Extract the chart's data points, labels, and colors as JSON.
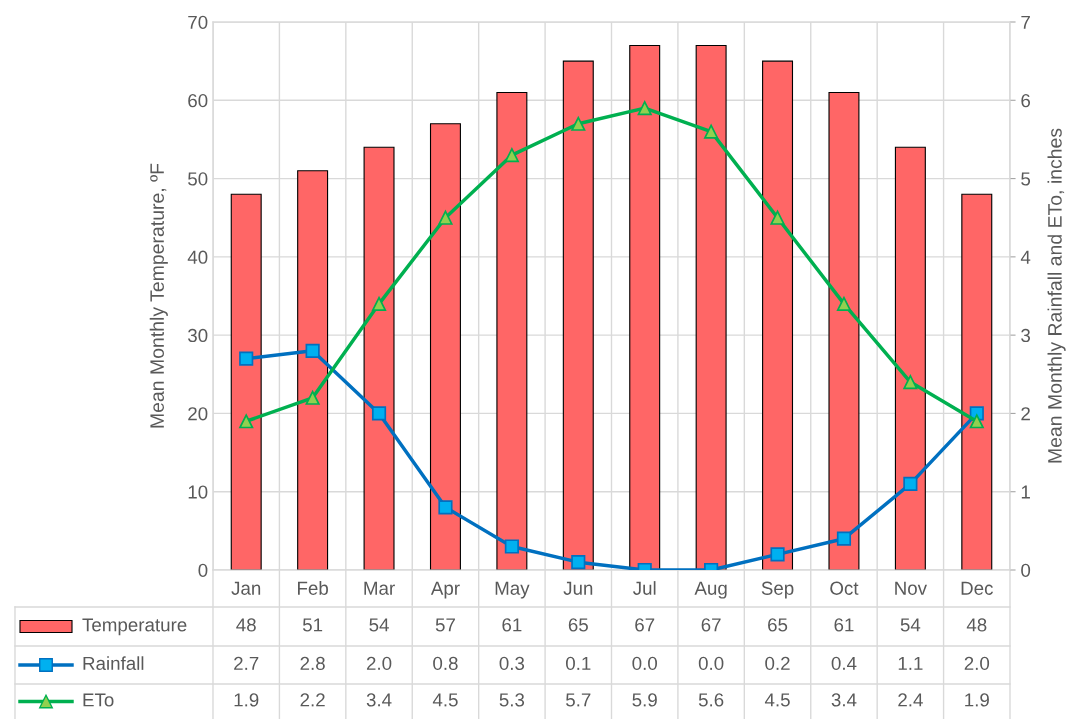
{
  "chart_data": {
    "type": "bar",
    "ylabel": "Mean Monthly Temperature, ºF",
    "y2label": "Mean Monthly Rainfall and ETo, inches",
    "categories": [
      "Jan",
      "Feb",
      "Mar",
      "Apr",
      "May",
      "Jun",
      "Jul",
      "Aug",
      "Sep",
      "Oct",
      "Nov",
      "Dec"
    ],
    "series": [
      {
        "name": "Temperature",
        "color": "#ff6666",
        "values": [
          48,
          51,
          54,
          57,
          61,
          65,
          67,
          67,
          65,
          61,
          54,
          48
        ],
        "value_labels": [
          "48",
          "51",
          "54",
          "57",
          "61",
          "65",
          "67",
          "67",
          "65",
          "61",
          "54",
          "48"
        ]
      },
      {
        "name": "Rainfall",
        "type": "line",
        "axis": "y2",
        "color": "#0070c0",
        "marker": "square",
        "values": [
          2.7,
          2.8,
          2.0,
          0.8,
          0.3,
          0.1,
          0.0,
          0.0,
          0.2,
          0.4,
          1.1,
          2.0
        ],
        "value_labels": [
          "2.7",
          "2.8",
          "2.0",
          "0.8",
          "0.3",
          "0.1",
          "0.0",
          "0.0",
          "0.2",
          "0.4",
          "1.1",
          "2.0"
        ]
      },
      {
        "name": "ETo",
        "type": "line",
        "axis": "y2",
        "color": "#00b050",
        "marker": "triangle",
        "values": [
          1.9,
          2.2,
          3.4,
          4.5,
          5.3,
          5.7,
          5.9,
          5.6,
          4.5,
          3.4,
          2.4,
          1.9
        ],
        "value_labels": [
          "1.9",
          "2.2",
          "3.4",
          "4.5",
          "5.3",
          "5.7",
          "5.9",
          "5.6",
          "4.5",
          "3.4",
          "2.4",
          "1.9"
        ]
      }
    ],
    "ylim": [
      0,
      70
    ],
    "yticks": [
      0,
      10,
      20,
      30,
      40,
      50,
      60,
      70
    ],
    "y2lim": [
      0,
      7
    ],
    "y2ticks": [
      0,
      1,
      2,
      3,
      4,
      5,
      6,
      7
    ],
    "grid": true,
    "legend": "bottom"
  }
}
